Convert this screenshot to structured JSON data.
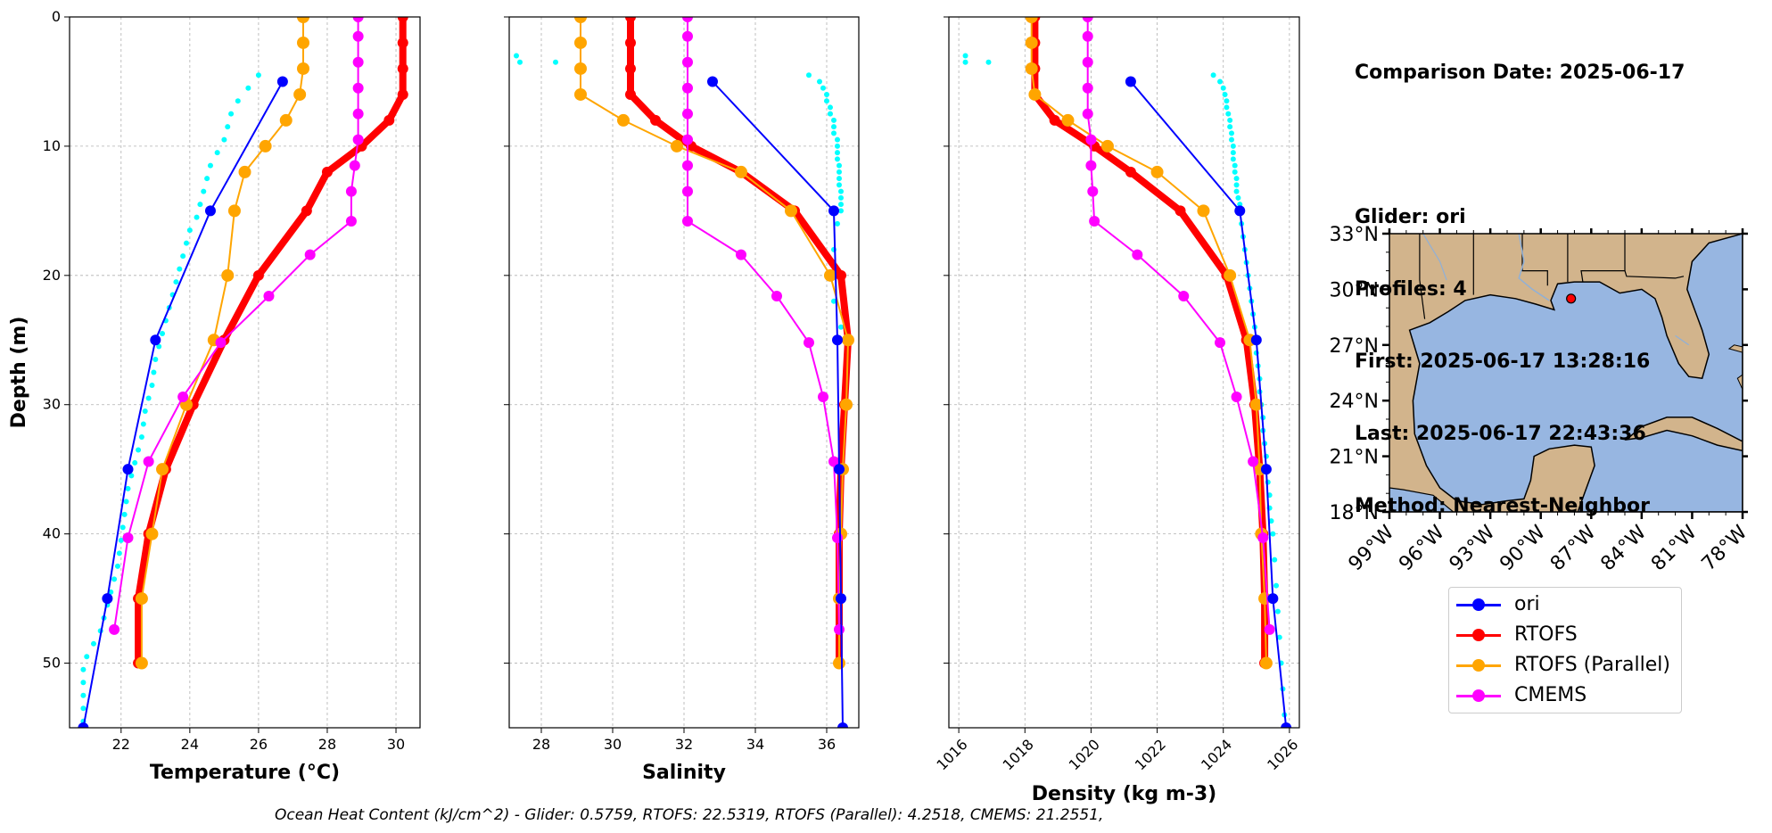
{
  "info": {
    "comparison": "Comparison Date: 2025-06-17",
    "glider": "Glider: ori",
    "profiles": "Profiles: 4",
    "first": "First: 2025-06-17 13:28:16",
    "last": "Last: 2025-06-17 22:43:36",
    "method": "Method: Nearest-Neighbor"
  },
  "footer": "Ocean Heat Content (kJ/cm^2) - Glider: 0.5759,  RTOFS: 22.5319,  RTOFS (Parallel): 4.2518,  CMEMS: 21.2551,",
  "colors": {
    "glider": "#0000ff",
    "glider_raw": "#00ffff",
    "rtofs": "#ff0000",
    "rtofs_parallel": "#ffa500",
    "cmems": "#ff00ff",
    "ocean": "#97b6e1",
    "land": "#d2b48c",
    "grid": "#b0b0b0"
  },
  "legend": [
    {
      "label": "ori",
      "color": "#0000ff"
    },
    {
      "label": "RTOFS",
      "color": "#ff0000"
    },
    {
      "label": "RTOFS (Parallel)",
      "color": "#ffa500"
    },
    {
      "label": "CMEMS",
      "color": "#ff00ff"
    }
  ],
  "chart_data": [
    {
      "type": "line",
      "xlabel": "Temperature (°C)",
      "ylabel": "Depth (m)",
      "xlim": [
        20.5,
        30.7
      ],
      "ylim": [
        55,
        0
      ],
      "xticks": [
        22,
        24,
        26,
        28,
        30
      ],
      "yticks": [
        0,
        10,
        20,
        30,
        40,
        50
      ],
      "grid": true,
      "series": [
        {
          "name": "ori",
          "y": [
            5,
            15,
            25,
            35,
            45,
            55
          ],
          "x": [
            26.7,
            24.6,
            23.0,
            22.2,
            21.6,
            20.9
          ]
        },
        {
          "name": "RTOFS",
          "y": [
            0,
            2,
            4,
            6,
            8,
            10,
            12,
            15,
            20,
            25,
            30,
            35,
            40,
            45,
            50
          ],
          "x": [
            30.2,
            30.2,
            30.2,
            30.2,
            29.8,
            29.0,
            28.0,
            27.4,
            26.0,
            25.0,
            24.1,
            23.3,
            22.8,
            22.5,
            22.5
          ]
        },
        {
          "name": "RTOFS (Parallel)",
          "y": [
            0,
            2,
            4,
            6,
            8,
            10,
            12,
            15,
            20,
            25,
            30,
            35,
            40,
            45,
            50
          ],
          "x": [
            27.3,
            27.3,
            27.3,
            27.2,
            26.8,
            26.2,
            25.6,
            25.3,
            25.1,
            24.7,
            23.9,
            23.2,
            22.9,
            22.6,
            22.6
          ]
        },
        {
          "name": "CMEMS",
          "y": [
            0,
            1.5,
            3.5,
            5.5,
            7.5,
            9.5,
            11.5,
            13.5,
            15.8,
            18.4,
            21.6,
            25.2,
            29.4,
            34.4,
            40.3,
            47.4
          ],
          "x": [
            28.9,
            28.9,
            28.9,
            28.9,
            28.9,
            28.9,
            28.8,
            28.7,
            28.7,
            27.5,
            26.3,
            24.9,
            23.8,
            22.8,
            22.2,
            21.8
          ]
        }
      ],
      "scatter": {
        "name": "glider-raw",
        "y": [
          4.5,
          5.5,
          6.5,
          7.5,
          8.5,
          9.5,
          10.5,
          11.5,
          12.5,
          13.5,
          14.5,
          15.5,
          16.5,
          17.5,
          18.5,
          19.5,
          20.5,
          21.5,
          22.5,
          23.5,
          24.5,
          25.5,
          26.5,
          27.5,
          28.5,
          29.5,
          30.5,
          31.5,
          32.5,
          33.5,
          34.5,
          35.5,
          36.5,
          37.5,
          38.5,
          39.5,
          40.5,
          41.5,
          42.5,
          43.5,
          44.5,
          45.5,
          46.5,
          47.5,
          48.5,
          49.5,
          50.5,
          51.5,
          52.5,
          53.5,
          54.5
        ],
        "x": [
          26.0,
          25.7,
          25.4,
          25.2,
          25.1,
          25.0,
          24.8,
          24.6,
          24.5,
          24.4,
          24.3,
          24.2,
          24.0,
          23.9,
          23.8,
          23.7,
          23.6,
          23.5,
          23.4,
          23.3,
          23.2,
          23.1,
          23.0,
          22.95,
          22.9,
          22.8,
          22.7,
          22.65,
          22.6,
          22.5,
          22.4,
          22.3,
          22.2,
          22.15,
          22.1,
          22.05,
          22.0,
          21.95,
          21.9,
          21.8,
          21.7,
          21.6,
          21.5,
          21.4,
          21.2,
          21.0,
          20.9,
          20.9,
          20.9,
          20.9,
          20.9
        ]
      }
    },
    {
      "type": "line",
      "xlabel": "Salinity",
      "ylim": [
        55,
        0
      ],
      "xlim": [
        27.1,
        36.9
      ],
      "xticks": [
        28,
        30,
        32,
        34,
        36
      ],
      "grid": true,
      "series": [
        {
          "name": "ori",
          "y": [
            5,
            15,
            25,
            35,
            45,
            55
          ],
          "x": [
            32.8,
            36.2,
            36.3,
            36.35,
            36.4,
            36.45
          ]
        },
        {
          "name": "RTOFS",
          "y": [
            0,
            2,
            4,
            6,
            8,
            10,
            12,
            15,
            20,
            25,
            30,
            35,
            40,
            45,
            50
          ],
          "x": [
            30.5,
            30.5,
            30.5,
            30.5,
            31.2,
            32.2,
            33.6,
            35.1,
            36.4,
            36.6,
            36.5,
            36.4,
            36.35,
            36.35,
            36.35
          ]
        },
        {
          "name": "RTOFS (Parallel)",
          "y": [
            0,
            2,
            4,
            6,
            8,
            10,
            12,
            15,
            20,
            25,
            30,
            35,
            40,
            45,
            50
          ],
          "x": [
            29.1,
            29.1,
            29.1,
            29.1,
            30.3,
            31.8,
            33.6,
            35.0,
            36.1,
            36.6,
            36.55,
            36.45,
            36.4,
            36.35,
            36.35
          ]
        },
        {
          "name": "CMEMS",
          "y": [
            0,
            1.5,
            3.5,
            5.5,
            7.5,
            9.5,
            11.5,
            13.5,
            15.8,
            18.4,
            21.6,
            25.2,
            29.4,
            34.4,
            40.3,
            47.4
          ],
          "x": [
            32.1,
            32.1,
            32.1,
            32.1,
            32.1,
            32.1,
            32.1,
            32.1,
            32.1,
            33.6,
            34.6,
            35.5,
            35.9,
            36.2,
            36.3,
            36.35
          ]
        }
      ],
      "scatter": {
        "name": "glider-raw",
        "y": [
          3,
          3.5,
          3.5,
          4.5,
          5,
          5.5,
          6,
          6.5,
          7,
          7.5,
          8,
          8.5,
          9,
          9.5,
          10,
          10.5,
          11,
          11.5,
          12,
          12.5,
          13,
          13.5,
          14,
          14.5,
          15,
          16,
          18,
          20,
          22,
          24
        ],
        "x": [
          27.3,
          27.4,
          28.4,
          35.5,
          35.8,
          35.9,
          36.0,
          36.0,
          36.1,
          36.1,
          36.2,
          36.2,
          36.2,
          36.3,
          36.3,
          36.3,
          36.3,
          36.35,
          36.35,
          36.35,
          36.35,
          36.4,
          36.4,
          36.4,
          36.4,
          36.3,
          36.2,
          36.0,
          36.2,
          36.4
        ]
      }
    },
    {
      "type": "line",
      "xlabel": "Density (kg m-3)",
      "ylim": [
        55,
        0
      ],
      "xlim": [
        1015.7,
        1026.3
      ],
      "xticks": [
        1016,
        1018,
        1020,
        1022,
        1024,
        1026
      ],
      "grid": true,
      "series": [
        {
          "name": "ori",
          "y": [
            5,
            15,
            25,
            35,
            45,
            55
          ],
          "x": [
            1021.2,
            1024.5,
            1025.0,
            1025.3,
            1025.5,
            1025.9
          ]
        },
        {
          "name": "RTOFS",
          "y": [
            0,
            2,
            4,
            6,
            8,
            10,
            12,
            15,
            20,
            25,
            30,
            35,
            40,
            45,
            50
          ],
          "x": [
            1018.3,
            1018.3,
            1018.3,
            1018.3,
            1018.9,
            1020.1,
            1021.2,
            1022.7,
            1024.1,
            1024.7,
            1024.95,
            1025.1,
            1025.2,
            1025.25,
            1025.25
          ]
        },
        {
          "name": "RTOFS (Parallel)",
          "y": [
            0,
            2,
            4,
            6,
            8,
            10,
            12,
            15,
            20,
            25,
            30,
            35,
            40,
            45,
            50
          ],
          "x": [
            1018.2,
            1018.2,
            1018.2,
            1018.3,
            1019.3,
            1020.5,
            1022.0,
            1023.4,
            1024.2,
            1024.8,
            1025.0,
            1025.1,
            1025.15,
            1025.25,
            1025.3
          ]
        },
        {
          "name": "CMEMS",
          "y": [
            0,
            1.5,
            3.5,
            5.5,
            7.5,
            9.5,
            11.5,
            13.5,
            15.8,
            18.4,
            21.6,
            25.2,
            29.4,
            34.4,
            40.3,
            47.4
          ],
          "x": [
            1019.9,
            1019.9,
            1019.9,
            1019.9,
            1019.9,
            1020.0,
            1020.0,
            1020.05,
            1020.1,
            1021.4,
            1022.8,
            1023.9,
            1024.4,
            1024.9,
            1025.2,
            1025.4
          ]
        }
      ],
      "scatter": {
        "name": "glider-raw",
        "y": [
          3,
          3.5,
          3.5,
          4.5,
          5,
          5.5,
          6,
          6.5,
          7,
          7.5,
          8,
          8.5,
          9,
          9.5,
          10,
          10.5,
          11,
          11.5,
          12,
          12.5,
          13,
          13.5,
          14,
          14.5,
          15,
          16,
          17,
          18,
          19,
          20,
          21,
          22,
          23,
          24,
          25,
          26,
          27,
          28,
          29,
          30,
          31,
          32,
          33,
          34,
          35,
          36,
          37,
          38,
          39,
          40,
          42,
          44,
          46,
          48,
          50,
          52,
          54
        ],
        "x": [
          1016.2,
          1016.2,
          1016.9,
          1023.7,
          1023.9,
          1024.0,
          1024.05,
          1024.1,
          1024.1,
          1024.15,
          1024.2,
          1024.2,
          1024.25,
          1024.25,
          1024.3,
          1024.3,
          1024.3,
          1024.35,
          1024.35,
          1024.4,
          1024.4,
          1024.4,
          1024.45,
          1024.5,
          1024.5,
          1024.55,
          1024.6,
          1024.65,
          1024.7,
          1024.75,
          1024.8,
          1024.85,
          1024.9,
          1024.95,
          1025.0,
          1025.0,
          1025.05,
          1025.1,
          1025.1,
          1025.15,
          1025.2,
          1025.2,
          1025.25,
          1025.3,
          1025.3,
          1025.35,
          1025.4,
          1025.4,
          1025.45,
          1025.5,
          1025.55,
          1025.6,
          1025.65,
          1025.7,
          1025.75,
          1025.8,
          1025.85
        ]
      }
    }
  ],
  "map": {
    "lon_ticks": [
      "99°W",
      "96°W",
      "93°W",
      "90°W",
      "87°W",
      "84°W",
      "81°W",
      "78°W"
    ],
    "lat_ticks": [
      "33°N",
      "30°N",
      "27°N",
      "24°N",
      "21°N",
      "18°N"
    ],
    "lon_range": [
      -99,
      -78
    ],
    "lat_range": [
      18,
      33
    ],
    "glider_position": {
      "lon": -88.2,
      "lat": 29.5
    }
  }
}
